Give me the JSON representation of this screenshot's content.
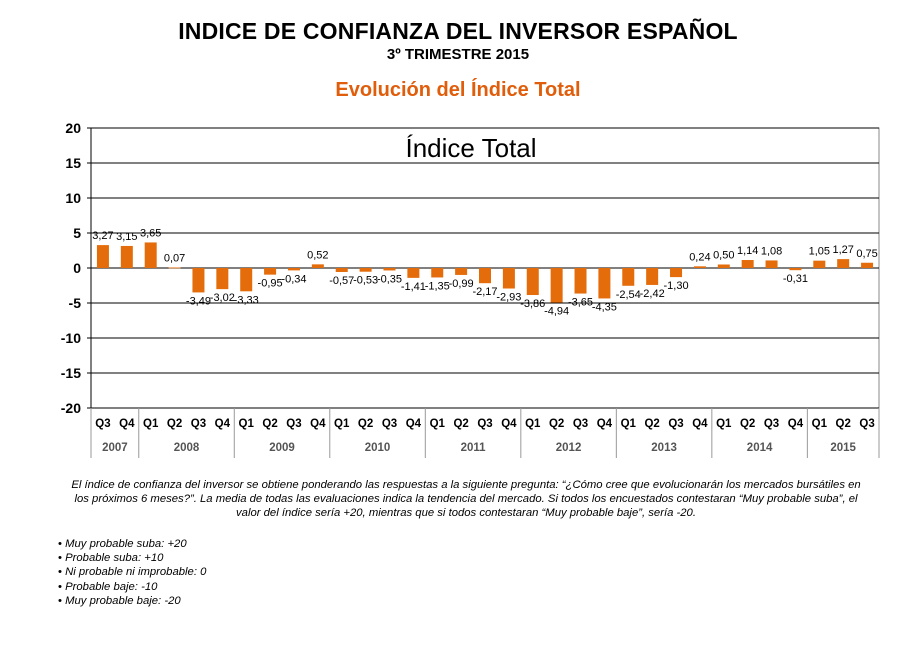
{
  "header": {
    "title": "INDICE DE CONFIANZA DEL INVERSOR ESPAÑOL",
    "subtitle": "3º TRIMESTRE 2015",
    "section_title": "Evolución del Índice Total"
  },
  "colors": {
    "bar": "#e46c0a",
    "grid": "#000000",
    "title_accent": "#e05d0b"
  },
  "chart_data": {
    "type": "bar",
    "title": "Índice Total",
    "xlabel": "",
    "ylabel": "",
    "ylim": [
      -20,
      20
    ],
    "yticks": [
      20,
      15,
      10,
      5,
      0,
      -5,
      -10,
      -15,
      -20
    ],
    "categories": [
      "Q3",
      "Q4",
      "Q1",
      "Q2",
      "Q3",
      "Q4",
      "Q1",
      "Q2",
      "Q3",
      "Q4",
      "Q1",
      "Q2",
      "Q3",
      "Q4",
      "Q1",
      "Q2",
      "Q3",
      "Q4",
      "Q1",
      "Q2",
      "Q3",
      "Q4",
      "Q1",
      "Q2",
      "Q3",
      "Q4",
      "Q1",
      "Q2",
      "Q3",
      "Q4",
      "Q1",
      "Q2",
      "Q3"
    ],
    "values": [
      3.27,
      3.15,
      3.65,
      0.07,
      -3.49,
      -3.02,
      -3.33,
      -0.95,
      -0.34,
      0.52,
      -0.57,
      -0.53,
      -0.35,
      -1.41,
      -1.35,
      -0.99,
      -2.17,
      -2.93,
      -3.86,
      -4.94,
      -3.65,
      -4.35,
      -2.54,
      -2.42,
      -1.3,
      0.24,
      0.5,
      1.14,
      1.08,
      -0.31,
      1.05,
      1.27,
      0.75
    ],
    "value_labels": [
      "3,27",
      "3,15",
      "3,65",
      "0,07",
      "-3,49",
      "-3,02",
      "-3,33",
      "-0,95",
      "-0,34",
      "0,52",
      "-0,57",
      "-0,53",
      "-0,35",
      "-1,41",
      "-1,35",
      "-0,99",
      "-2,17",
      "-2,93",
      "-3,86",
      "-4,94",
      "-3,65",
      "-4,35",
      "-2,54",
      "-2,42",
      "-1,30",
      "0,24",
      "0,50",
      "1,14",
      "1,08",
      "-0,31",
      "1,05",
      "1,27",
      "0,75"
    ],
    "years": [
      {
        "label": "2007",
        "start": 0,
        "end": 1
      },
      {
        "label": "2008",
        "start": 2,
        "end": 5
      },
      {
        "label": "2009",
        "start": 6,
        "end": 9
      },
      {
        "label": "2010",
        "start": 10,
        "end": 13
      },
      {
        "label": "2011",
        "start": 14,
        "end": 17
      },
      {
        "label": "2012",
        "start": 18,
        "end": 21
      },
      {
        "label": "2013",
        "start": 22,
        "end": 25
      },
      {
        "label": "2014",
        "start": 26,
        "end": 29
      },
      {
        "label": "2015",
        "start": 30,
        "end": 32
      }
    ],
    "grid": true
  },
  "footer": {
    "note": "El índice de confianza del inversor se obtiene ponderando las respuestas a la siguiente pregunta: “¿Cómo cree que evolucionarán los mercados bursátiles en los próximos 6 meses?”. La media de todas las evaluaciones indica la tendencia del mercado. Si todos los encuestados contestaran “Muy probable suba”, el valor del índice sería +20, mientras que si todos contestaran “Muy probable baje”, sería -20.",
    "bullets": [
      "Muy probable suba: +20",
      "Probable suba: +10",
      "Ni probable ni improbable: 0",
      "Probable baje: -10",
      "Muy probable baje: -20"
    ]
  }
}
